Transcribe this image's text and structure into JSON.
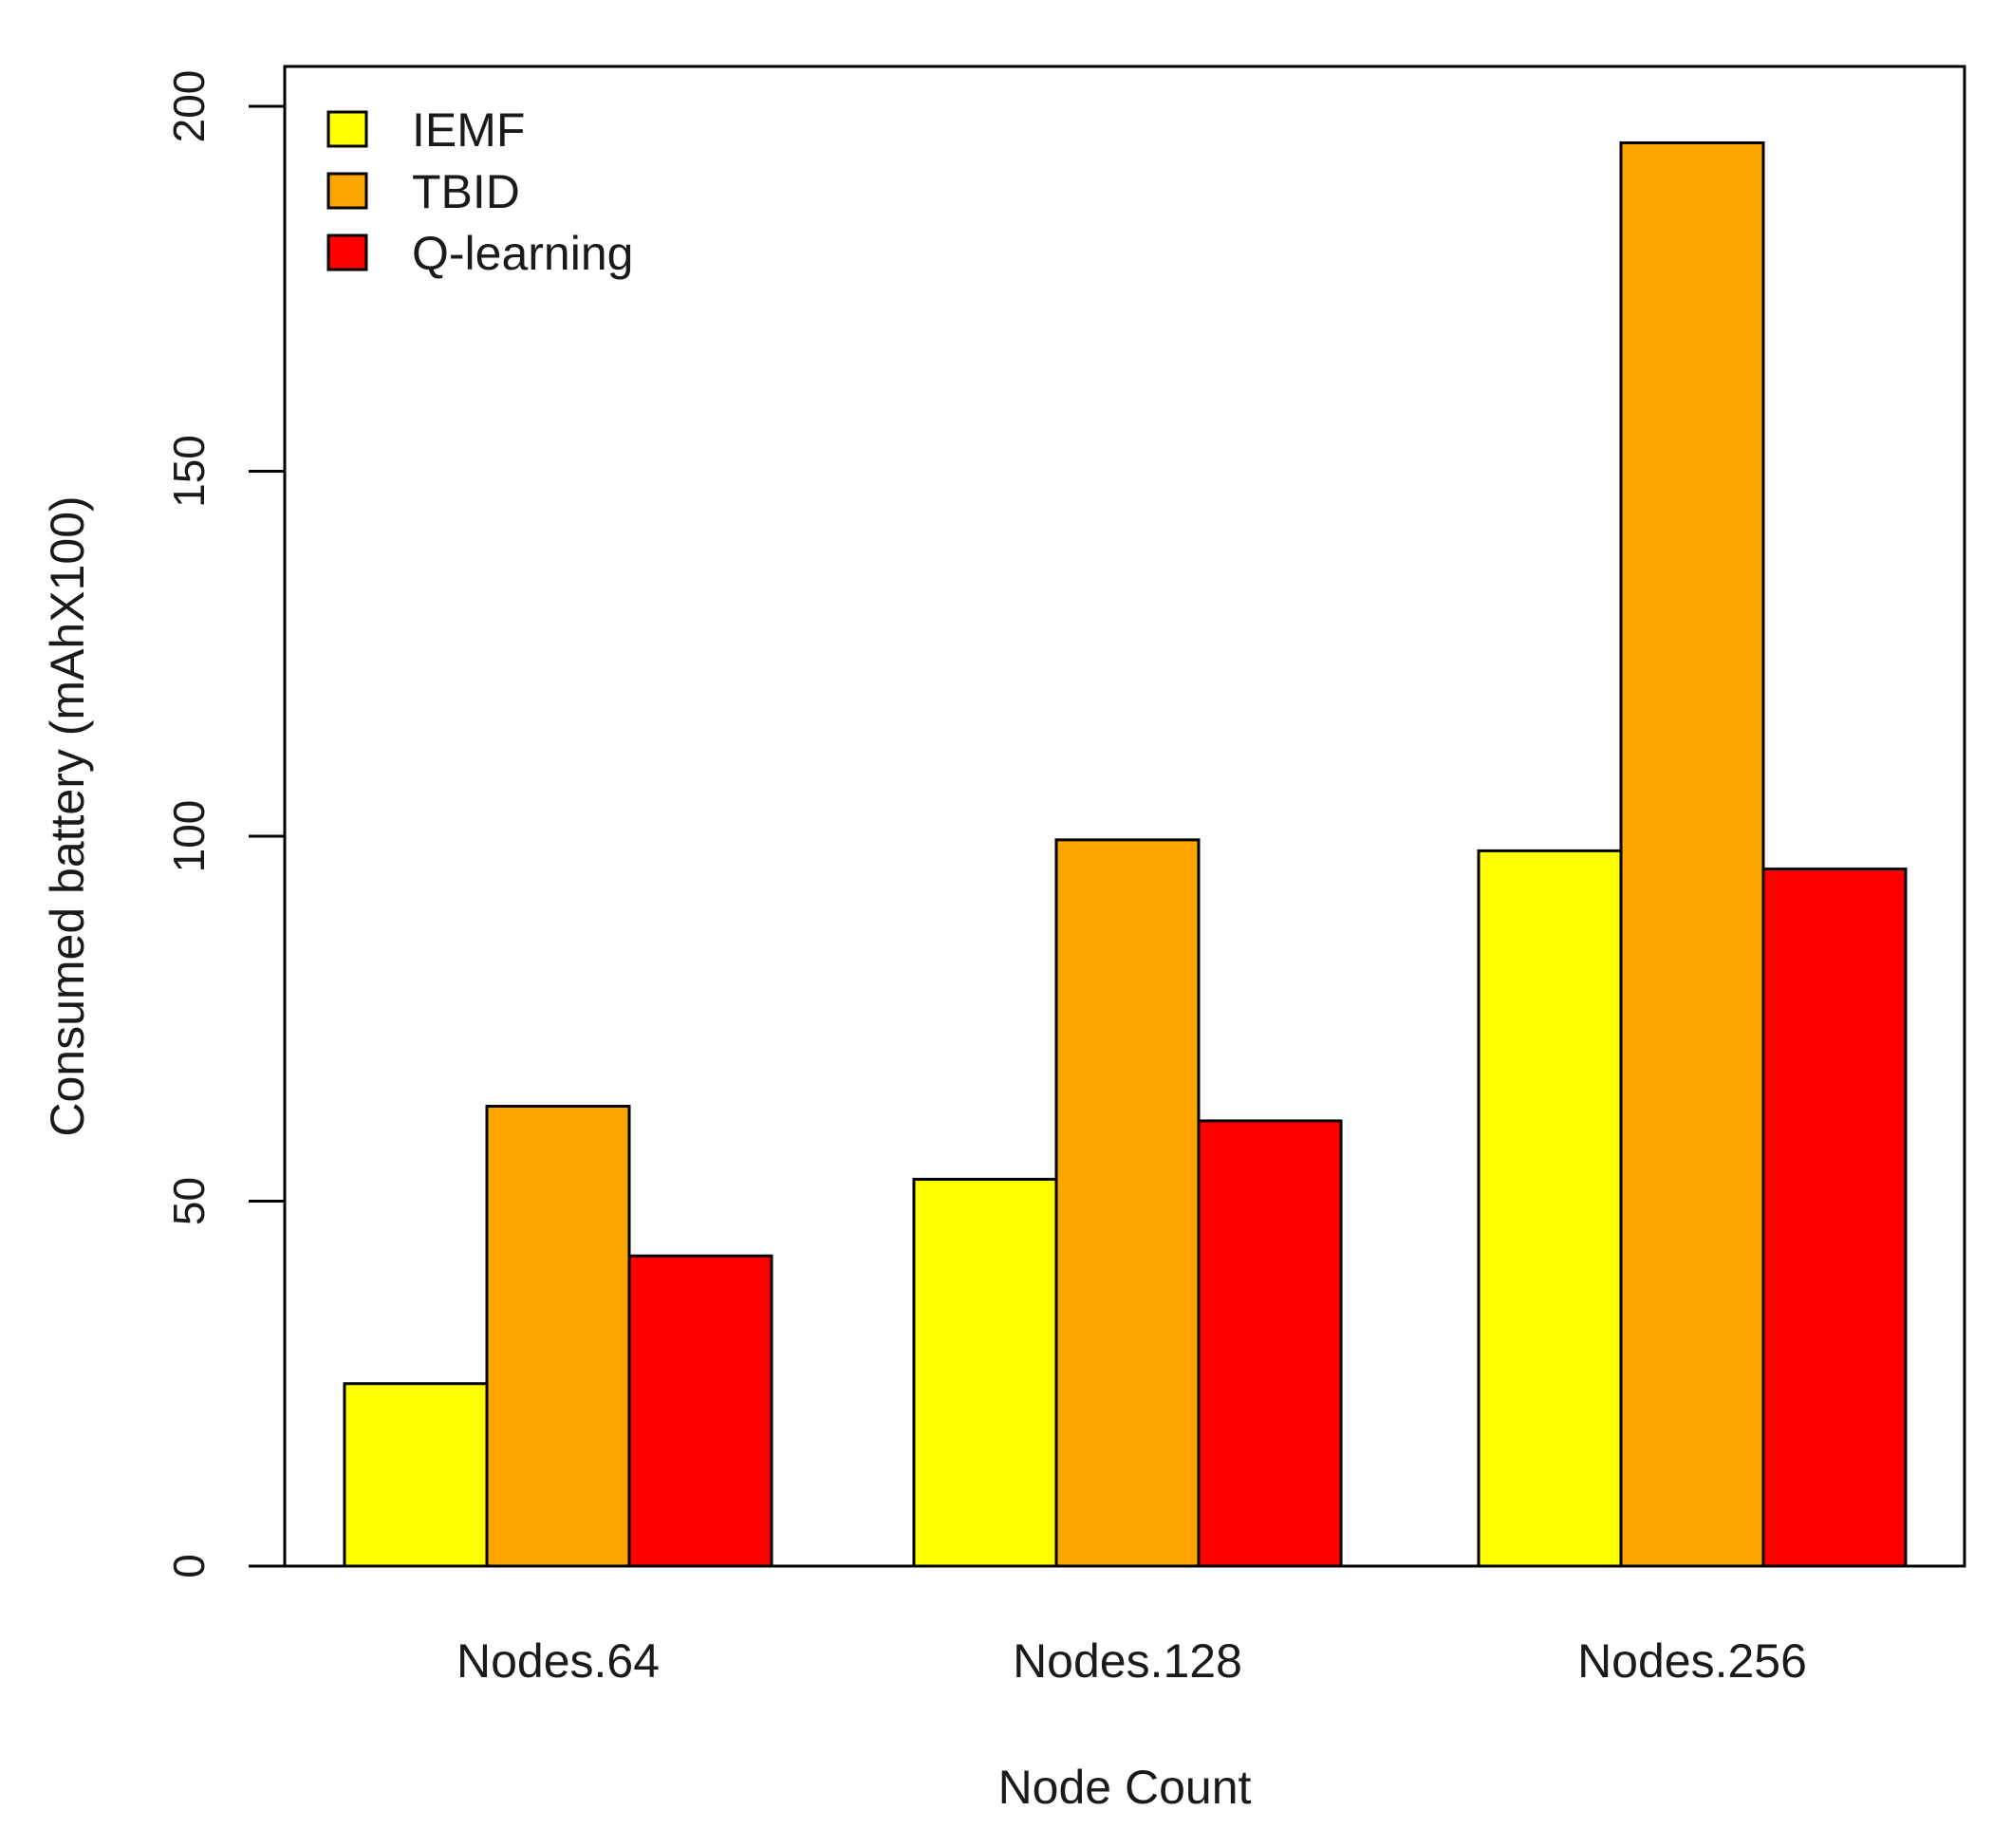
{
  "chart_data": {
    "type": "bar",
    "title": "",
    "xlabel": "Node Count",
    "ylabel": "Consumed battery (mAhX100)",
    "categories": [
      "Nodes.64",
      "Nodes.128",
      "Nodes.256"
    ],
    "series": [
      {
        "name": "IEMF",
        "color": "#FFFF00",
        "values": [
          25,
          53,
          98
        ]
      },
      {
        "name": "TBID",
        "color": "#FFA500",
        "values": [
          63,
          99.5,
          195
        ]
      },
      {
        "name": "Q-learning",
        "color": "#FF0000",
        "values": [
          42.5,
          61,
          95.5
        ]
      }
    ],
    "ylim": [
      0,
      200
    ],
    "yticks": [
      "0",
      "50",
      "100",
      "150",
      "200"
    ],
    "ytick_values": [
      0,
      50,
      100,
      150,
      200
    ],
    "grid": false,
    "legend_position": "top-left"
  }
}
